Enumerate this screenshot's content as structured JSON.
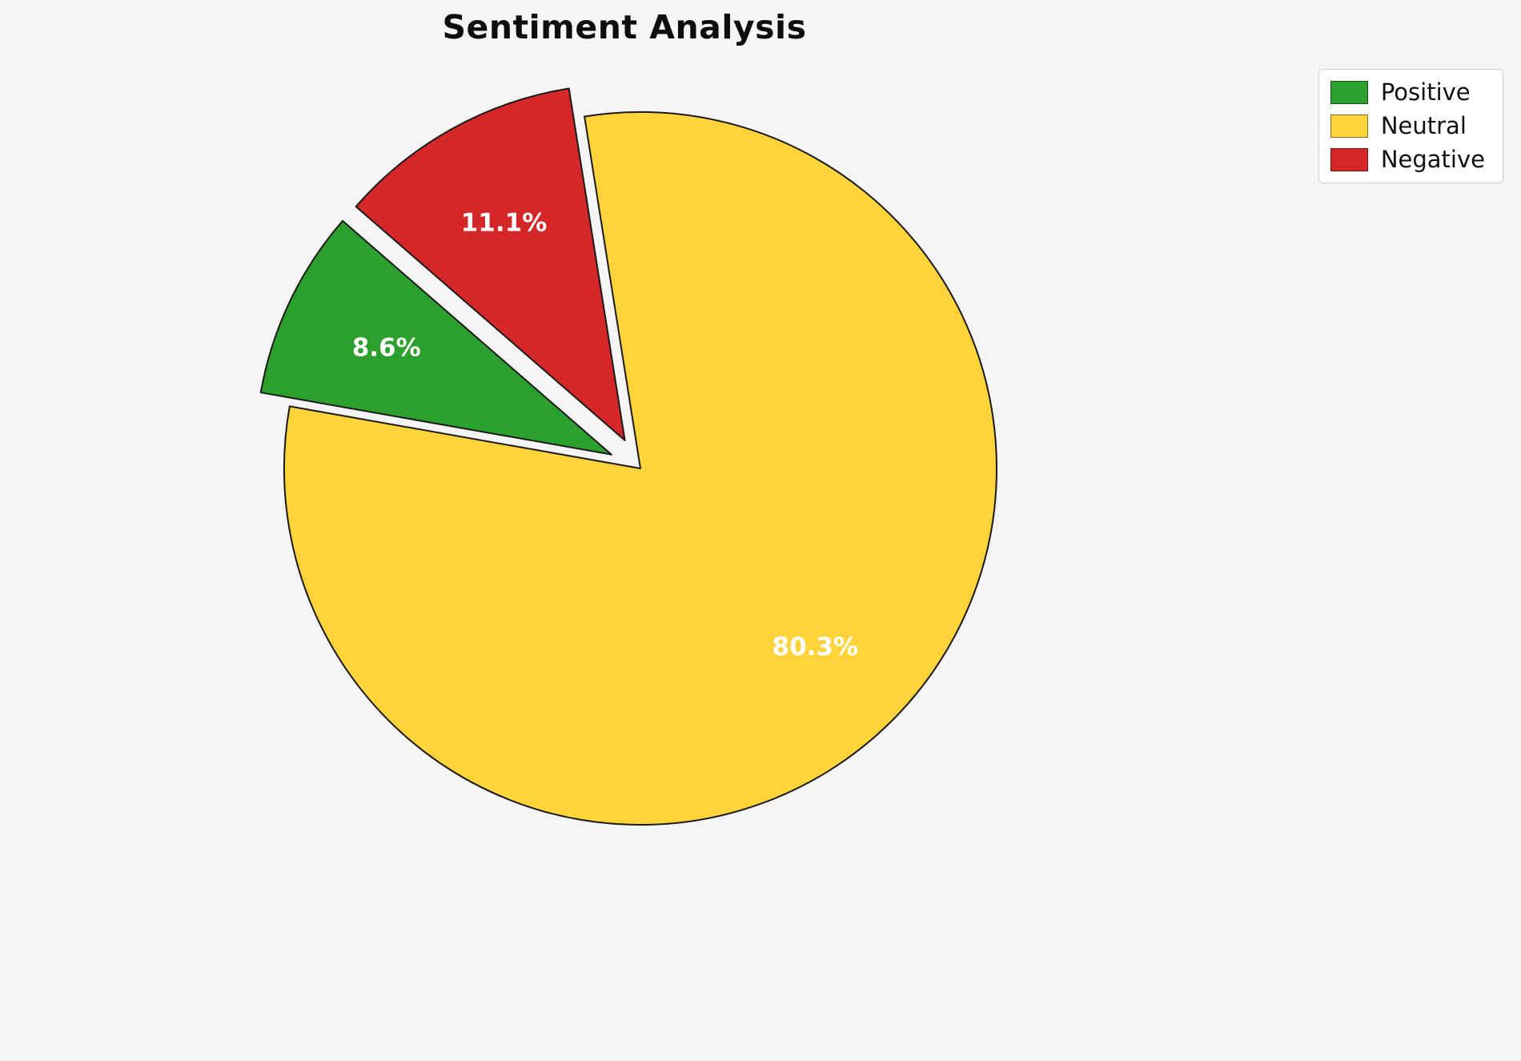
{
  "title": "Sentiment Analysis",
  "chart_data": {
    "type": "pie",
    "title": "Sentiment Analysis",
    "labels": [
      "Positive",
      "Neutral",
      "Negative"
    ],
    "values": [
      8.6,
      80.3,
      11.1
    ],
    "pct_labels": [
      "8.6%",
      "80.3%",
      "11.1%"
    ],
    "colors": [
      "#2CA02C",
      "#FFD43B",
      "#D62728"
    ],
    "explode": [
      0.09,
      0.0,
      0.09
    ],
    "start_angle": 139,
    "counterclock": true,
    "pctdistance": 0.7,
    "label_color": "#FFFFFF",
    "edge_color": "#1A1A1A",
    "background": "#F5F5F5",
    "legend": {
      "position": "upper-right",
      "entries": [
        "Positive",
        "Neutral",
        "Negative"
      ]
    }
  }
}
